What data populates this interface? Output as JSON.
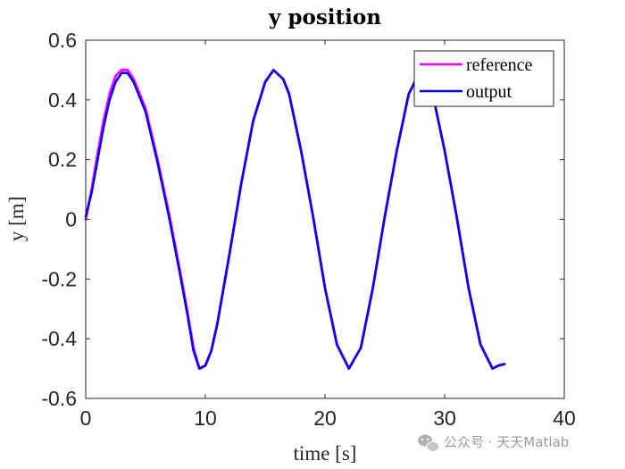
{
  "chart_data": {
    "type": "line",
    "title": "y position",
    "xlabel": "time [s]",
    "ylabel": "y [m]",
    "xlim": [
      0,
      40
    ],
    "ylim": [
      -0.6,
      0.6
    ],
    "xticks": [
      0,
      10,
      20,
      30,
      40
    ],
    "xtick_labels": [
      "0",
      "10",
      "20",
      "30",
      "40"
    ],
    "yticks": [
      0.6,
      0.4,
      0.2,
      0,
      -0.2,
      -0.4,
      -0.6
    ],
    "ytick_labels": [
      "0.6",
      "0.4",
      "0.2",
      "0",
      "-0.2",
      "-0.4",
      "-0.6"
    ],
    "grid": false,
    "legend_position": "top-right",
    "series": [
      {
        "name": "reference",
        "color": "#ff00ff",
        "points": [
          [
            0,
            0
          ],
          [
            0.5,
            0.1
          ],
          [
            1,
            0.22
          ],
          [
            1.5,
            0.33
          ],
          [
            2,
            0.42
          ],
          [
            2.5,
            0.48
          ],
          [
            3,
            0.5
          ],
          [
            3.5,
            0.5
          ],
          [
            4,
            0.47
          ],
          [
            5,
            0.37
          ],
          [
            6,
            0.2
          ],
          [
            7,
            0.01
          ],
          [
            8,
            -0.2
          ],
          [
            8.5,
            -0.31
          ],
          [
            9,
            -0.43
          ],
          [
            9.5,
            -0.5
          ],
          [
            10,
            -0.49
          ],
          [
            10.5,
            -0.44
          ],
          [
            11,
            -0.35
          ],
          [
            12,
            -0.12
          ],
          [
            13,
            0.12
          ],
          [
            14,
            0.33
          ],
          [
            15,
            0.46
          ],
          [
            15.7,
            0.5
          ],
          [
            16.5,
            0.47
          ],
          [
            17,
            0.42
          ],
          [
            18,
            0.23
          ],
          [
            19,
            0.01
          ],
          [
            20,
            -0.23
          ],
          [
            21,
            -0.42
          ],
          [
            22,
            -0.5
          ],
          [
            23,
            -0.43
          ],
          [
            24,
            -0.23
          ],
          [
            25,
            0.01
          ],
          [
            26,
            0.23
          ],
          [
            27,
            0.42
          ],
          [
            28,
            0.5
          ],
          [
            28.5,
            0.48
          ],
          [
            29,
            0.42
          ],
          [
            30,
            0.23
          ],
          [
            31,
            0.01
          ],
          [
            32,
            -0.23
          ],
          [
            33,
            -0.42
          ],
          [
            34,
            -0.5
          ],
          [
            34.5,
            -0.49
          ],
          [
            35,
            -0.485
          ]
        ]
      },
      {
        "name": "output",
        "color": "#0000ee",
        "points": [
          [
            0,
            0.01
          ],
          [
            0.5,
            0.09
          ],
          [
            1,
            0.2
          ],
          [
            1.5,
            0.31
          ],
          [
            2,
            0.4
          ],
          [
            2.5,
            0.46
          ],
          [
            3,
            0.49
          ],
          [
            3.5,
            0.49
          ],
          [
            4,
            0.46
          ],
          [
            5,
            0.36
          ],
          [
            6,
            0.19
          ],
          [
            7,
            0.0
          ],
          [
            8,
            -0.21
          ],
          [
            8.5,
            -0.32
          ],
          [
            9,
            -0.44
          ],
          [
            9.5,
            -0.5
          ],
          [
            10,
            -0.49
          ],
          [
            10.5,
            -0.44
          ],
          [
            11,
            -0.35
          ],
          [
            12,
            -0.12
          ],
          [
            13,
            0.12
          ],
          [
            14,
            0.33
          ],
          [
            15,
            0.46
          ],
          [
            15.7,
            0.5
          ],
          [
            16.5,
            0.47
          ],
          [
            17,
            0.42
          ],
          [
            18,
            0.23
          ],
          [
            19,
            0.01
          ],
          [
            20,
            -0.23
          ],
          [
            21,
            -0.42
          ],
          [
            22,
            -0.5
          ],
          [
            23,
            -0.43
          ],
          [
            24,
            -0.23
          ],
          [
            25,
            0.01
          ],
          [
            26,
            0.23
          ],
          [
            27,
            0.42
          ],
          [
            28,
            0.5
          ],
          [
            28.5,
            0.48
          ],
          [
            29,
            0.42
          ],
          [
            30,
            0.23
          ],
          [
            31,
            0.01
          ],
          [
            32,
            -0.23
          ],
          [
            33,
            -0.42
          ],
          [
            34,
            -0.5
          ],
          [
            34.5,
            -0.49
          ],
          [
            35,
            -0.485
          ]
        ]
      }
    ]
  },
  "watermark": {
    "text": "公众号 · 天天Matlab",
    "icon": "wechat-icon"
  }
}
